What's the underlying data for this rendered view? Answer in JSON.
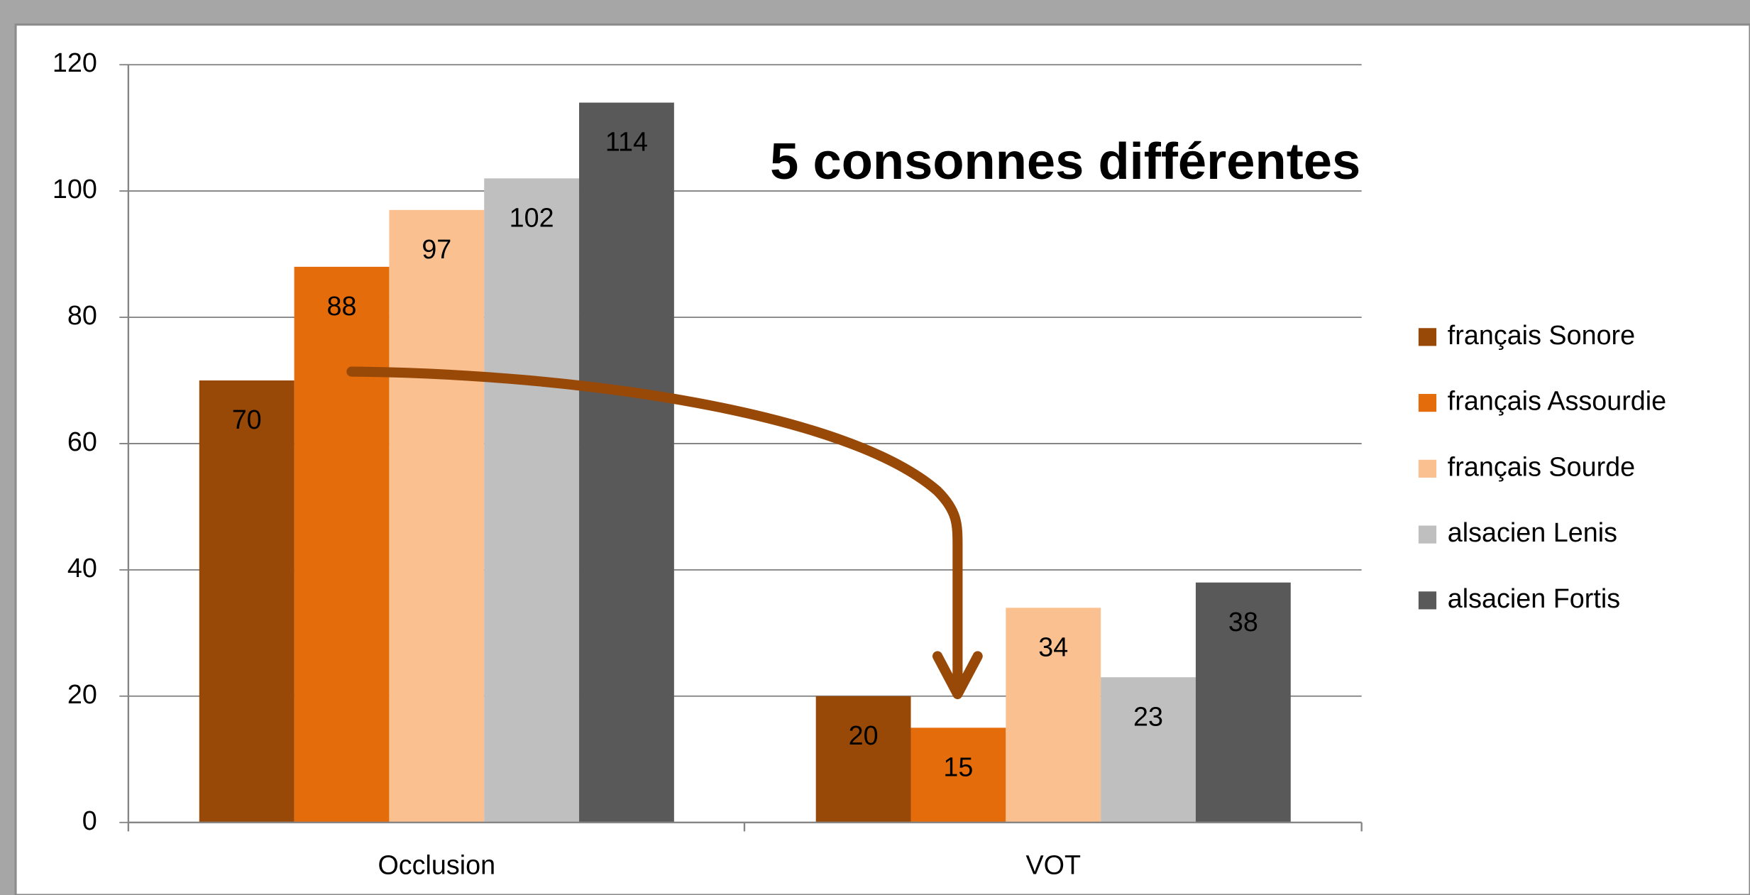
{
  "chart_data": {
    "type": "bar",
    "annotation": "5 consonnes différentes",
    "categories": [
      "Occlusion",
      "VOT"
    ],
    "series": [
      {
        "name": "français Sonore",
        "color": "#984807",
        "values": [
          70,
          20
        ]
      },
      {
        "name": "français Assourdie",
        "color": "#e46c0a",
        "values": [
          88,
          15
        ]
      },
      {
        "name": "français Sourde",
        "color": "#fac090",
        "values": [
          97,
          34
        ]
      },
      {
        "name": "alsacien Lenis",
        "color": "#bfbfbf",
        "values": [
          102,
          23
        ]
      },
      {
        "name": "alsacien Fortis",
        "color": "#595959",
        "values": [
          114,
          38
        ]
      }
    ],
    "ylim": [
      0,
      120
    ],
    "yticks": [
      0,
      20,
      40,
      60,
      80,
      100,
      120
    ],
    "grid": true,
    "legend": "right"
  }
}
